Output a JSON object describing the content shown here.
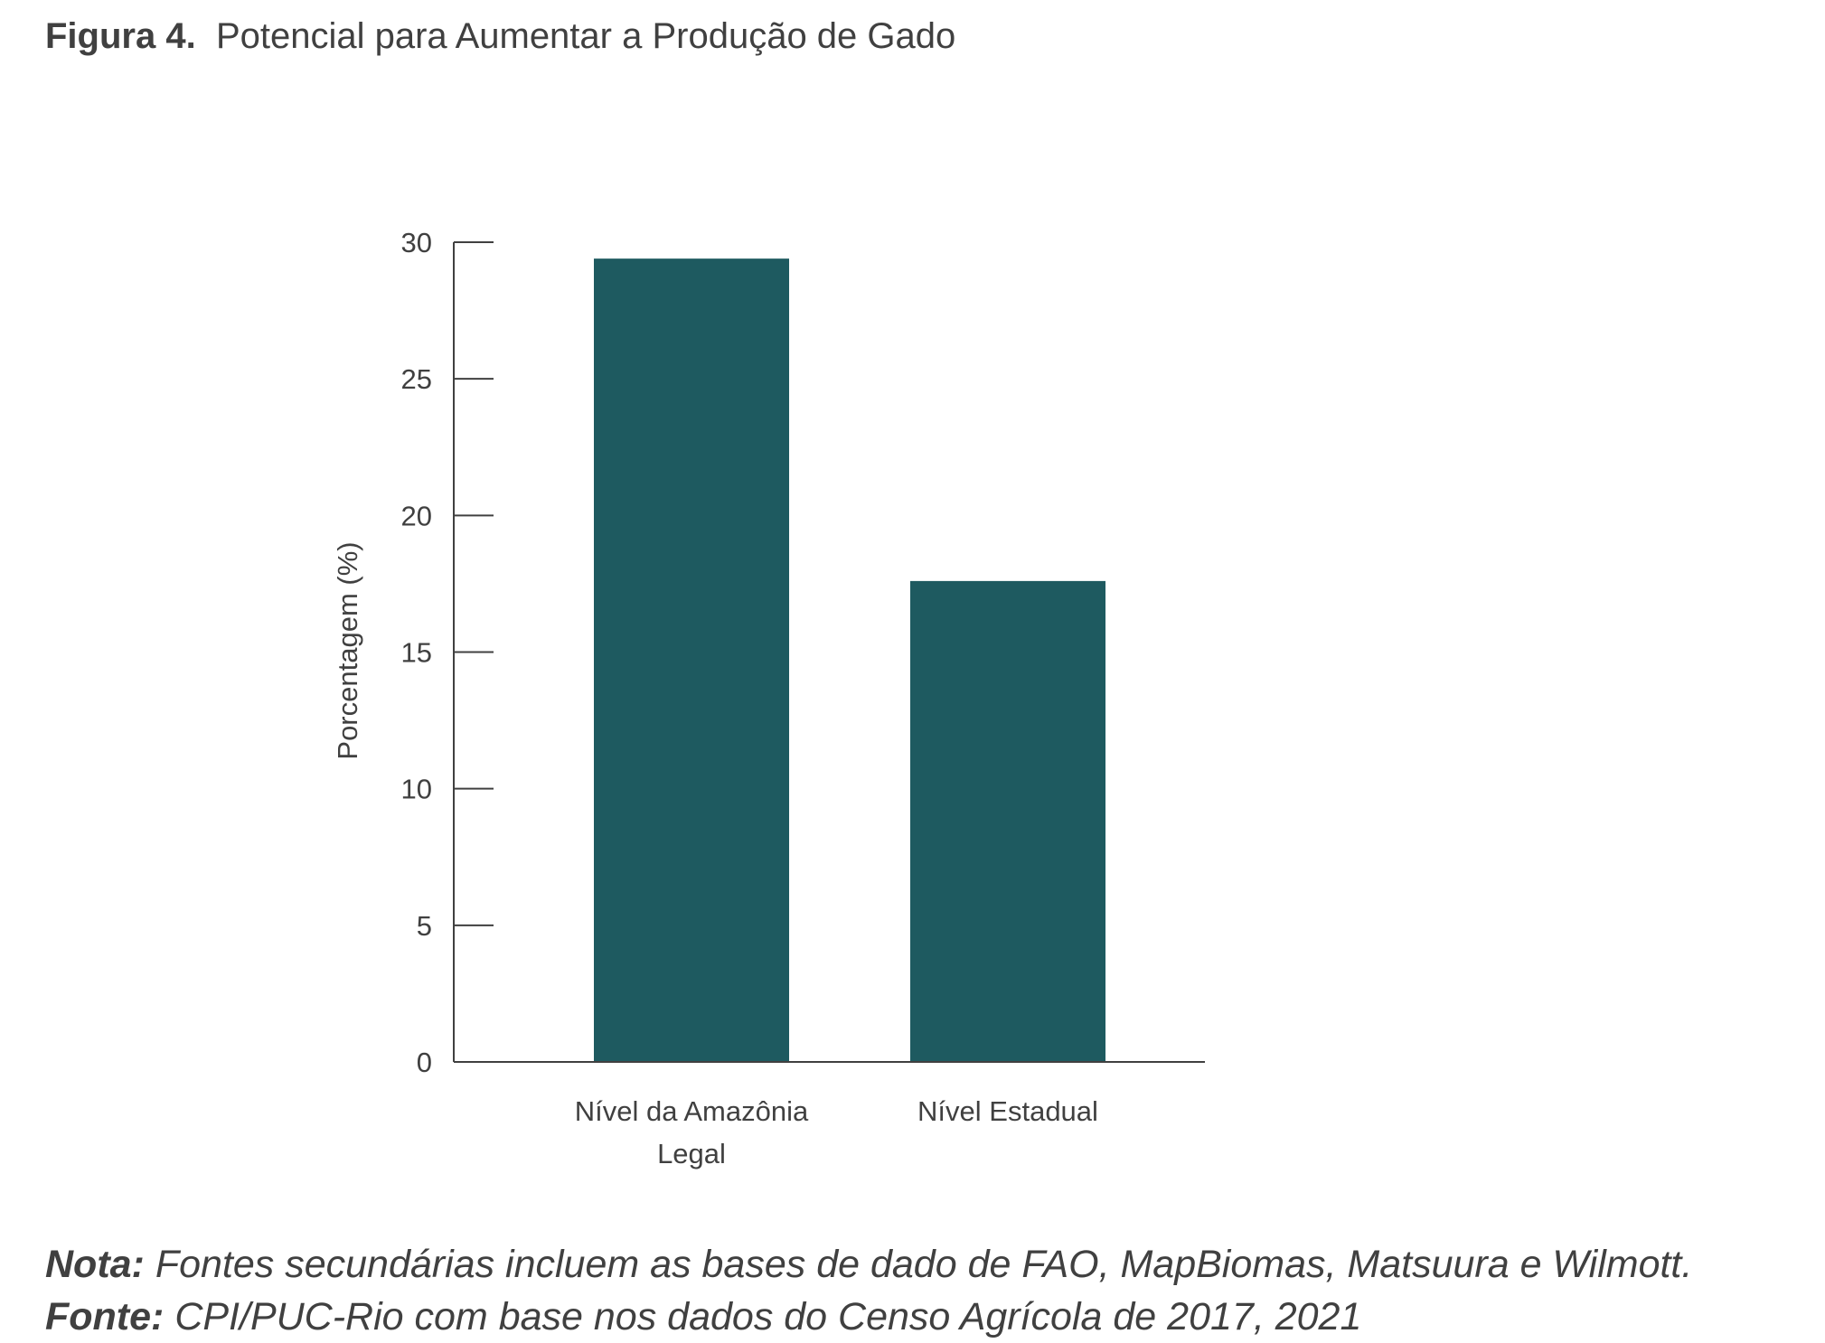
{
  "figure": {
    "label": "Figura 4.",
    "title": "Potencial para Aumentar a Produção de Gado"
  },
  "chart_data": {
    "type": "bar",
    "categories": [
      "Nível da Amazônia Legal",
      "Nível Estadual"
    ],
    "category_lines": [
      [
        "Nível da Amazônia",
        "Legal"
      ],
      [
        "Nível Estadual"
      ]
    ],
    "values": [
      29.4,
      17.6
    ],
    "ylabel": "Porcentagem (%)",
    "xlabel": "",
    "ylim": [
      0,
      30
    ],
    "yticks": [
      0,
      5,
      10,
      15,
      20,
      25,
      30
    ],
    "grid": false,
    "bar_color": "#1e5a60"
  },
  "notes": {
    "nota_label": "Nota:",
    "nota_text": "Fontes secundárias incluem as bases de dado de FAO, MapBiomas, Matsuura e Wilmott.",
    "fonte_label": "Fonte:",
    "fonte_text": "CPI/PUC-Rio com base nos dados do Censo Agrícola de 2017, 2021"
  }
}
